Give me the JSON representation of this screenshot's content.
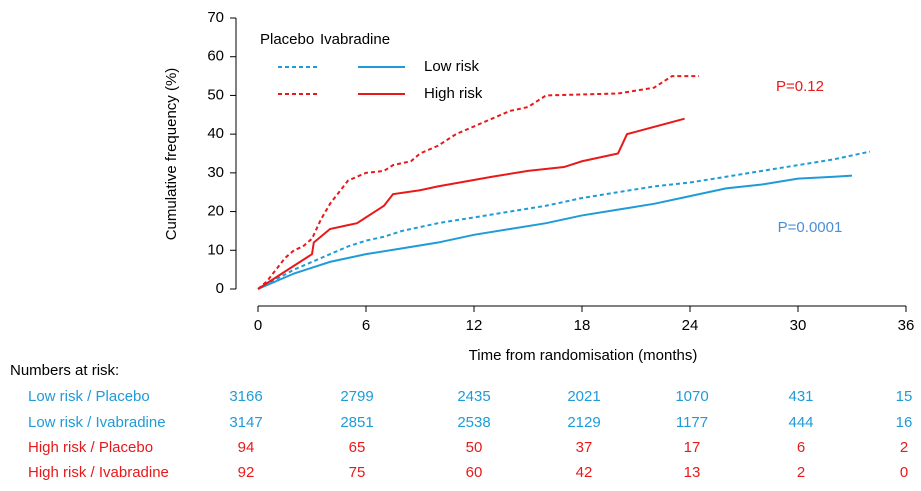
{
  "chart_data": {
    "type": "line",
    "xlabel": "Time from randomisation (months)",
    "ylabel": "Cumulative frequency (%)",
    "xlim": [
      0,
      36
    ],
    "xticks": [
      0,
      6,
      12,
      18,
      24,
      30,
      36
    ],
    "ylim": [
      0,
      70
    ],
    "yticks": [
      0,
      10,
      20,
      30,
      40,
      50,
      60,
      70
    ],
    "legend": {
      "columns": [
        "Placebo",
        "Ivabradine"
      ],
      "rows": [
        "Low risk",
        "High risk"
      ]
    },
    "annotations": [
      {
        "text": "P=0.12",
        "color": "#e8191a"
      },
      {
        "text": "P=0.0001",
        "color": "#4a8fd8"
      }
    ],
    "risk_table_title": "Numbers at risk:",
    "series": [
      {
        "name": "Low risk / Placebo",
        "color": "#1f9bd7",
        "dashed": true,
        "x": [
          0,
          1,
          2,
          3,
          4,
          5,
          6,
          7,
          8,
          9,
          10,
          12,
          14,
          16,
          18,
          20,
          22,
          24,
          26,
          28,
          30,
          32,
          34
        ],
        "values": [
          0,
          2.5,
          5,
          7,
          9,
          11,
          12.5,
          13.5,
          15,
          16,
          17,
          18.5,
          20,
          21.5,
          23.5,
          25,
          26.5,
          27.5,
          29,
          30.5,
          32,
          33.5,
          35.5
        ],
        "at_risk": [
          3166,
          2799,
          2435,
          2021,
          1070,
          431,
          15
        ]
      },
      {
        "name": "Low risk / Ivabradine",
        "color": "#1f9bd7",
        "dashed": false,
        "x": [
          0,
          1,
          2,
          3,
          4,
          5,
          6,
          8,
          10,
          12,
          14,
          16,
          18,
          20,
          22,
          24,
          26,
          28,
          30,
          32,
          33
        ],
        "values": [
          0,
          2,
          4,
          5.5,
          7,
          8,
          9,
          10.5,
          12,
          14,
          15.5,
          17,
          19,
          20.5,
          22,
          24,
          26,
          27,
          28.5,
          29,
          29.3
        ],
        "at_risk": [
          3147,
          2851,
          2538,
          2129,
          1177,
          444,
          16
        ]
      },
      {
        "name": "High risk / Placebo",
        "color": "#e8191a",
        "dashed": true,
        "x": [
          0,
          0.5,
          1,
          1.5,
          2,
          2.5,
          3,
          3.5,
          4,
          4.5,
          5,
          5.5,
          6,
          7,
          7.5,
          8.5,
          9,
          10,
          11,
          12,
          13,
          14,
          15,
          16,
          20,
          22,
          23,
          24.5
        ],
        "values": [
          0,
          2,
          5,
          8,
          10,
          11,
          13,
          18,
          22,
          25,
          28,
          29,
          30,
          30.5,
          32,
          33,
          35,
          37,
          40,
          42,
          44,
          46,
          47,
          50,
          50.5,
          52,
          55,
          55
        ],
        "at_risk": [
          94,
          65,
          50,
          37,
          17,
          6,
          2
        ]
      },
      {
        "name": "High risk / Ivabradine",
        "color": "#e8191a",
        "dashed": false,
        "x": [
          0,
          1,
          2,
          3,
          3.1,
          4,
          5,
          5.5,
          6,
          6.5,
          7,
          7.5,
          9,
          10,
          13,
          15,
          17,
          18,
          20,
          20.5,
          23.7
        ],
        "values": [
          0,
          3,
          6,
          9,
          12,
          15.5,
          16.5,
          17,
          18.5,
          20,
          21.5,
          24.5,
          25.5,
          26.5,
          29,
          30.5,
          31.5,
          33,
          35,
          40,
          44
        ],
        "at_risk": [
          92,
          75,
          60,
          42,
          13,
          2,
          0
        ]
      }
    ]
  }
}
